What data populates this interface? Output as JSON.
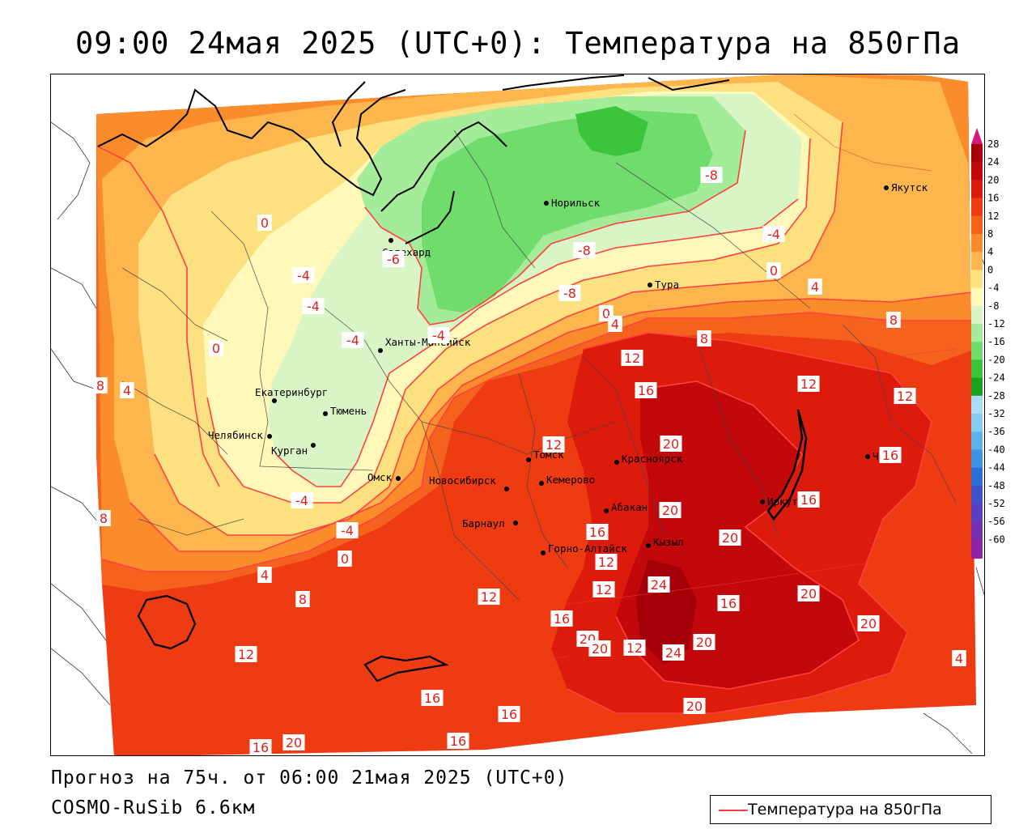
{
  "title": "09:00 24мая 2025 (UTC+0): Температура на 850гПа",
  "forecast_text": "Прогноз на 75ч. от 06:00 21мая 2025 (UTC+0)",
  "model_text": "COSMO-RuSib 6.6км",
  "legend": {
    "line_label": "Температура на 850гПа",
    "line_color": "#ff4040"
  },
  "colorbar": {
    "levels": [
      "28",
      "24",
      "20",
      "16",
      "12",
      "8",
      "4",
      "0",
      "-4",
      "-8",
      "-12",
      "-16",
      "-20",
      "-24",
      "-28",
      "-32",
      "-36",
      "-40",
      "-44",
      "-48",
      "-52",
      "-56",
      "-60"
    ],
    "colors": [
      "#a50009",
      "#c2080a",
      "#dd1b0d",
      "#ee3b12",
      "#f5621e",
      "#fb8c2b",
      "#fdb54d",
      "#fde07f",
      "#fff8b8",
      "#d9f5c5",
      "#a4ec9a",
      "#6fdc6c",
      "#3bc53c",
      "#1aa21c",
      "#a9ddf7",
      "#86ccf2",
      "#5bb2ec",
      "#3b93e3",
      "#2c6fd8",
      "#3f52cc",
      "#5a3fbf",
      "#7430b0",
      "#8d22a6"
    ],
    "top_arrow_color": "#d21a7b",
    "bottom_arrow_color": "#a020a0"
  },
  "cities": [
    {
      "name": "Норильск"
    },
    {
      "name": "Якутск"
    },
    {
      "name": "Салехард"
    },
    {
      "name": "Тура"
    },
    {
      "name": "Ханты-Мансийск"
    },
    {
      "name": "Екатеринбург"
    },
    {
      "name": "Тюмень"
    },
    {
      "name": "Челябинск"
    },
    {
      "name": "Курган"
    },
    {
      "name": "Омск"
    },
    {
      "name": "Новосибирск"
    },
    {
      "name": "Томск"
    },
    {
      "name": "Кемерово"
    },
    {
      "name": "Красноярск"
    },
    {
      "name": "Барнаул"
    },
    {
      "name": "Абакан"
    },
    {
      "name": "Горно-Алтайск"
    },
    {
      "name": "Кызыл"
    },
    {
      "name": "Иркутск"
    },
    {
      "name": "Чита"
    }
  ],
  "contour_labels": [
    {
      "value": "-8"
    },
    {
      "value": "-8"
    },
    {
      "value": "-4"
    },
    {
      "value": "0"
    },
    {
      "value": "4"
    },
    {
      "value": "8"
    },
    {
      "value": "-4"
    },
    {
      "value": "0"
    },
    {
      "value": "-6"
    },
    {
      "value": "-4"
    },
    {
      "value": "-4"
    },
    {
      "value": "-4"
    },
    {
      "value": "-8"
    },
    {
      "value": "0"
    },
    {
      "value": "-4"
    },
    {
      "value": "-4"
    },
    {
      "value": "0"
    },
    {
      "value": "4"
    },
    {
      "value": "0"
    },
    {
      "value": "4"
    },
    {
      "value": "8"
    },
    {
      "value": "8"
    },
    {
      "value": "4"
    },
    {
      "value": "8"
    },
    {
      "value": "8"
    },
    {
      "value": "12"
    },
    {
      "value": "16"
    },
    {
      "value": "12"
    },
    {
      "value": "12"
    },
    {
      "value": "12"
    },
    {
      "value": "16"
    },
    {
      "value": "20"
    },
    {
      "value": "12"
    },
    {
      "value": "16"
    },
    {
      "value": "20"
    },
    {
      "value": "20"
    },
    {
      "value": "16"
    },
    {
      "value": "12"
    },
    {
      "value": "24"
    },
    {
      "value": "16"
    },
    {
      "value": "20"
    },
    {
      "value": "12"
    },
    {
      "value": "12"
    },
    {
      "value": "20"
    },
    {
      "value": "16"
    },
    {
      "value": "20"
    },
    {
      "value": "20"
    },
    {
      "value": "24"
    },
    {
      "value": "20"
    },
    {
      "value": "12"
    },
    {
      "value": "16"
    },
    {
      "value": "16"
    },
    {
      "value": "20"
    },
    {
      "value": "16"
    },
    {
      "value": "20"
    },
    {
      "value": "16"
    },
    {
      "value": "4"
    }
  ]
}
